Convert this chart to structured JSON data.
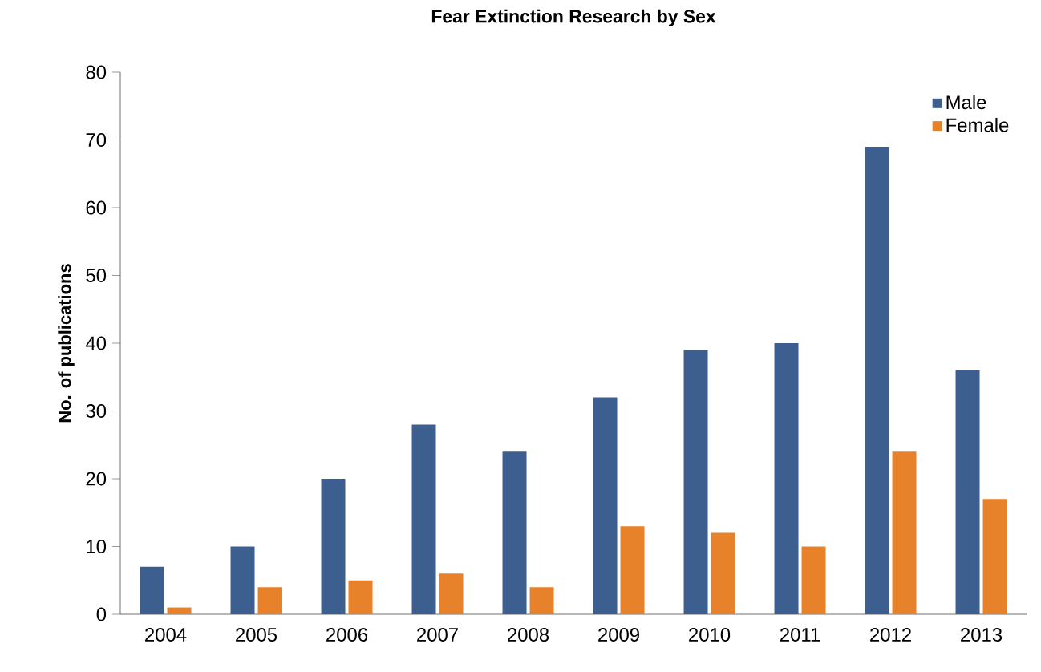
{
  "chart_data": {
    "type": "bar",
    "title": "Fear Extinction Research by Sex",
    "ylabel": "No. of publications",
    "categories": [
      "2004",
      "2005",
      "2006",
      "2007",
      "2008",
      "2009",
      "2010",
      "2011",
      "2012",
      "2013"
    ],
    "series": [
      {
        "name": "Male",
        "color": "#3d5f8f",
        "values": [
          7,
          10,
          20,
          28,
          24,
          32,
          39,
          40,
          69,
          36
        ]
      },
      {
        "name": "Female",
        "color": "#e8822a",
        "values": [
          1,
          4,
          5,
          6,
          4,
          13,
          12,
          10,
          24,
          17
        ]
      }
    ],
    "ylim": [
      0,
      80
    ],
    "yticks": [
      0,
      10,
      20,
      30,
      40,
      50,
      60,
      70,
      80
    ],
    "grid": false,
    "legend": "top right"
  }
}
